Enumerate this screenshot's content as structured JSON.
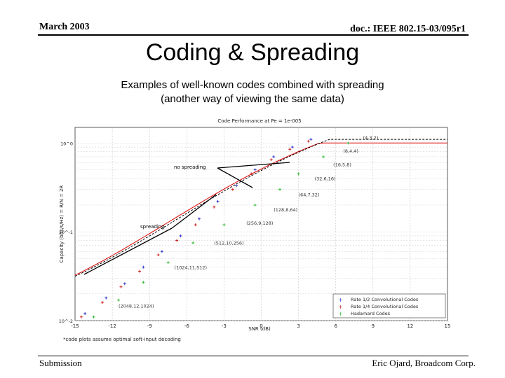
{
  "header": {
    "date": "March 2003",
    "doc": "doc.: IEEE 802.15-03/095r1"
  },
  "title": "Coding & Spreading",
  "subtitle": [
    "Examples of well-known codes combined with spreading",
    "(another way of viewing the same data)"
  ],
  "footer": {
    "left": "Submission",
    "right": "Eric Ojard, Broadcom Corp."
  },
  "chart_data": {
    "type": "scatter",
    "title": "Code Performance at Pe = 1e-005",
    "xlabel": "SNR (dB)",
    "ylabel": "Capacity (bits/s/Hz) = R/N = 2R",
    "x_ticks": [
      "-15",
      "-12",
      "-9",
      "-6",
      "-3",
      "0",
      "3",
      "6",
      "9",
      "12",
      "15"
    ],
    "y_ticks": [
      "10^0",
      "10^-1",
      "10^-2"
    ],
    "xlim": [
      -15,
      15
    ],
    "ylim": [
      0.01,
      1.5
    ],
    "y_scale": "log",
    "grid": true,
    "legend_position": "lower-right",
    "footnote": "*code plots assume optimal soft-input decoding",
    "colors": {
      "conv12": "#3333cc",
      "conv14": "#cc2222",
      "hadamard": "#33bb33",
      "capacity": "#e00000",
      "bound": "#000000"
    },
    "annotations": [
      {
        "text": "no spreading"
      },
      {
        "text": "spreading"
      }
    ],
    "code_labels": [
      "(4,3,2)",
      "(8,4,4)",
      "(16,5,8)",
      "(32,6,16)",
      "(64,7,32)",
      "(128,8,64)",
      "(256,9,128)",
      "(512,10,256)",
      "(1024,11,512)",
      "(2048,12,1024)"
    ],
    "series": [
      {
        "name": "Rate 1/2 Convolutional Codes",
        "color": "#3333cc",
        "points": [
          [
            -14.2,
            0.012
          ],
          [
            -12.5,
            0.018
          ],
          [
            -11,
            0.026
          ],
          [
            -9.5,
            0.04
          ],
          [
            -8,
            0.06
          ],
          [
            -6.5,
            0.09
          ],
          [
            -5,
            0.14
          ],
          [
            -3.5,
            0.22
          ],
          [
            -2,
            0.33
          ],
          [
            -0.5,
            0.5
          ],
          [
            1,
            0.7
          ],
          [
            2.5,
            0.9
          ],
          [
            4,
            1.1
          ]
        ]
      },
      {
        "name": "Rate 1/4 Convolutional Codes",
        "color": "#cc2222",
        "points": [
          [
            -14.5,
            0.011
          ],
          [
            -12.8,
            0.016
          ],
          [
            -11.3,
            0.024
          ],
          [
            -9.8,
            0.036
          ],
          [
            -8.3,
            0.055
          ],
          [
            -6.8,
            0.08
          ],
          [
            -5.3,
            0.12
          ],
          [
            -3.8,
            0.19
          ],
          [
            -2.3,
            0.3
          ],
          [
            -0.8,
            0.45
          ],
          [
            0.8,
            0.65
          ],
          [
            2.3,
            0.85
          ],
          [
            3.8,
            1.05
          ]
        ]
      },
      {
        "name": "Hadamard Codes",
        "color": "#33bb33",
        "points": [
          [
            -13.5,
            0.011
          ],
          [
            -11.5,
            0.017
          ],
          [
            -9.5,
            0.027
          ],
          [
            -7.5,
            0.045
          ],
          [
            -5.5,
            0.075
          ],
          [
            -3,
            0.12
          ],
          [
            -0.5,
            0.2
          ],
          [
            1.5,
            0.3
          ],
          [
            3,
            0.45
          ],
          [
            5,
            0.7
          ],
          [
            7,
            1.0
          ]
        ]
      }
    ]
  }
}
